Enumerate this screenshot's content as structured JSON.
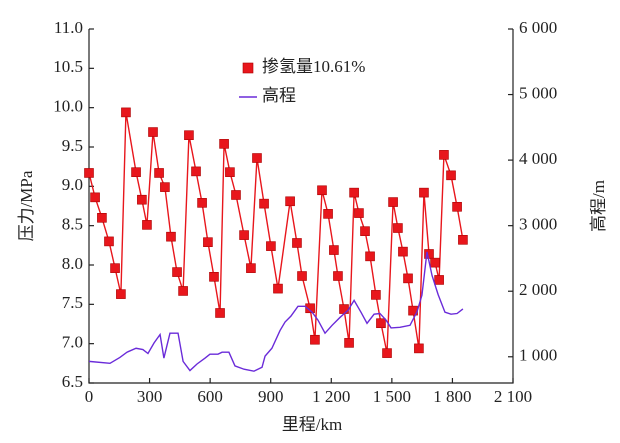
{
  "chart_data": {
    "type": "line",
    "xlabel": "里程/km",
    "ylabel": "压力/MPa",
    "y2label": "高程/m",
    "xlim": [
      0,
      2100
    ],
    "xticks": [
      0,
      300,
      600,
      900,
      {
        "value": 1200,
        "label": "1 200"
      },
      {
        "value": 1500,
        "label": "1 500"
      },
      {
        "value": 1800,
        "label": "1 800"
      },
      {
        "value": 2100,
        "label": "2 100"
      }
    ],
    "ylim": [
      6.5,
      11.0
    ],
    "yticks": [
      6.5,
      {
        "value": 7.0,
        "label": "7.0"
      },
      7.5,
      {
        "value": 8.0,
        "label": "8.0"
      },
      8.5,
      {
        "value": 9.0,
        "label": "9.0"
      },
      9.5,
      {
        "value": 10.0,
        "label": "10.0"
      },
      10.5,
      {
        "value": 11.0,
        "label": "11.0"
      }
    ],
    "y2lim": [
      600,
      6000
    ],
    "y2ticks": [
      {
        "value": 1000,
        "label": "1 000"
      },
      {
        "value": 2000,
        "label": "2 000"
      },
      {
        "value": 3000,
        "label": "3 000"
      },
      {
        "value": 4000,
        "label": "4 000"
      },
      {
        "value": 5000,
        "label": "5 000"
      },
      {
        "value": 6000,
        "label": "6 000"
      }
    ],
    "legend": "top-center",
    "series": [
      {
        "name": "掺氢量10.61%",
        "color": "#e8161c",
        "marker": "square",
        "x": [
          0,
          30,
          64,
          99,
          129,
          158,
          183,
          233,
          262,
          287,
          317,
          347,
          376,
          406,
          436,
          466,
          495,
          530,
          560,
          589,
          619,
          649,
          669,
          698,
          728,
          768,
          802,
          832,
          867,
          901,
          936,
          996,
          1030,
          1055,
          1095,
          1119,
          1154,
          1184,
          1213,
          1233,
          1263,
          1288,
          1313,
          1337,
          1367,
          1392,
          1421,
          1446,
          1476,
          1506,
          1530,
          1555,
          1580,
          1605,
          1634,
          1659,
          1684,
          1714,
          1734,
          1758,
          1793,
          1823,
          1852
        ],
        "values": [
          9.17,
          8.86,
          8.6,
          8.3,
          7.96,
          7.63,
          9.94,
          9.18,
          8.83,
          8.51,
          9.69,
          9.17,
          8.99,
          8.36,
          7.91,
          7.67,
          9.65,
          9.19,
          8.79,
          8.29,
          7.85,
          7.39,
          9.54,
          9.18,
          8.89,
          8.38,
          7.96,
          9.36,
          8.78,
          8.24,
          7.7,
          8.81,
          8.28,
          7.86,
          7.45,
          7.05,
          8.95,
          8.65,
          8.19,
          7.86,
          7.44,
          7.01,
          8.92,
          8.66,
          8.43,
          8.11,
          7.62,
          7.26,
          6.88,
          8.8,
          8.47,
          8.17,
          7.83,
          7.42,
          6.94,
          8.92,
          8.14,
          8.03,
          7.81,
          9.4,
          9.14,
          8.74,
          8.32
        ]
      },
      {
        "name": "高程",
        "color": "#6a2bd9",
        "axis": "y2",
        "x": [
          0,
          104,
          153,
          188,
          233,
          267,
          292,
          322,
          352,
          371,
          401,
          441,
          466,
          500,
          535,
          575,
          599,
          639,
          659,
          693,
          723,
          768,
          817,
          857,
          872,
          906,
          946,
          971,
          1000,
          1035,
          1070,
          1105,
          1134,
          1169,
          1204,
          1243,
          1283,
          1313,
          1347,
          1377,
          1412,
          1441,
          1471,
          1496,
          1540,
          1590,
          1625,
          1649,
          1674,
          1699,
          1729,
          1763,
          1793,
          1823,
          1852
        ],
        "values": [
          930,
          900,
          990,
          1070,
          1130,
          1110,
          1050,
          1210,
          1340,
          980,
          1360,
          1360,
          930,
          790,
          890,
          980,
          1040,
          1040,
          1070,
          1070,
          860,
          810,
          780,
          840,
          1010,
          1130,
          1400,
          1530,
          1620,
          1770,
          1770,
          1680,
          1560,
          1360,
          1480,
          1600,
          1710,
          1860,
          1680,
          1510,
          1650,
          1660,
          1560,
          1440,
          1450,
          1480,
          1690,
          1940,
          2600,
          2240,
          1950,
          1680,
          1650,
          1660,
          1730
        ]
      }
    ]
  }
}
